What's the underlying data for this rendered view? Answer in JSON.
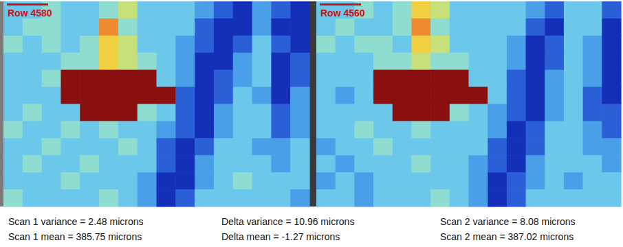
{
  "chart_data": [
    {
      "type": "heatmap",
      "title": "Row 4580",
      "color_range": [
        0,
        8
      ],
      "cells": [
        [
          3,
          3,
          4,
          3,
          3,
          4,
          5,
          3,
          3,
          3,
          2,
          1,
          0,
          2,
          1,
          0
        ],
        [
          3,
          4,
          4,
          3,
          3,
          7,
          4,
          3,
          3,
          3,
          1,
          0,
          0,
          2,
          0,
          0
        ],
        [
          4,
          3,
          4,
          3,
          4,
          6,
          5,
          3,
          3,
          2,
          1,
          0,
          1,
          3,
          1,
          0
        ],
        [
          3,
          3,
          3,
          4,
          4,
          6,
          5,
          4,
          3,
          2,
          0,
          0,
          2,
          3,
          0,
          1
        ],
        [
          3,
          3,
          4,
          8,
          8,
          8,
          8,
          8,
          3,
          2,
          0,
          1,
          2,
          3,
          0,
          1
        ],
        [
          3,
          3,
          3,
          8,
          8,
          8,
          8,
          8,
          8,
          1,
          0,
          1,
          3,
          2,
          0,
          2
        ],
        [
          3,
          4,
          3,
          3,
          8,
          8,
          8,
          4,
          3,
          1,
          0,
          2,
          3,
          3,
          1,
          2
        ],
        [
          4,
          3,
          3,
          4,
          3,
          4,
          3,
          3,
          2,
          1,
          0,
          2,
          3,
          3,
          1,
          2
        ],
        [
          3,
          3,
          4,
          3,
          3,
          3,
          4,
          3,
          1,
          0,
          1,
          3,
          3,
          2,
          2,
          3
        ],
        [
          3,
          4,
          3,
          3,
          4,
          3,
          3,
          3,
          1,
          0,
          2,
          3,
          3,
          3,
          2,
          3
        ],
        [
          3,
          3,
          3,
          4,
          3,
          3,
          3,
          2,
          0,
          0,
          2,
          3,
          4,
          3,
          3,
          3
        ],
        [
          4,
          3,
          3,
          3,
          3,
          4,
          3,
          2,
          0,
          1,
          3,
          3,
          3,
          3,
          3,
          2
        ]
      ]
    },
    {
      "type": "heatmap",
      "title": "Row 4560",
      "color_range": [
        0,
        8
      ],
      "cells": [
        [
          3,
          3,
          4,
          3,
          4,
          6,
          5,
          3,
          3,
          3,
          3,
          2,
          1,
          3,
          3,
          1
        ],
        [
          3,
          4,
          3,
          3,
          4,
          7,
          4,
          3,
          3,
          3,
          3,
          1,
          0,
          3,
          3,
          0
        ],
        [
          4,
          3,
          4,
          4,
          3,
          6,
          5,
          3,
          3,
          3,
          2,
          0,
          1,
          3,
          2,
          0
        ],
        [
          3,
          3,
          3,
          4,
          4,
          5,
          4,
          4,
          3,
          3,
          2,
          0,
          1,
          3,
          2,
          0
        ],
        [
          3,
          3,
          3,
          8,
          8,
          8,
          8,
          8,
          3,
          3,
          1,
          0,
          2,
          3,
          2,
          0
        ],
        [
          3,
          2,
          3,
          8,
          8,
          8,
          8,
          8,
          8,
          3,
          1,
          0,
          2,
          3,
          1,
          0
        ],
        [
          3,
          3,
          3,
          3,
          8,
          8,
          8,
          4,
          3,
          2,
          1,
          0,
          2,
          3,
          1,
          1
        ],
        [
          3,
          3,
          4,
          3,
          3,
          4,
          3,
          3,
          3,
          2,
          0,
          1,
          3,
          3,
          2,
          1
        ],
        [
          2,
          3,
          3,
          4,
          3,
          3,
          3,
          3,
          3,
          1,
          0,
          1,
          3,
          3,
          2,
          2
        ],
        [
          3,
          2,
          3,
          3,
          3,
          4,
          3,
          3,
          2,
          1,
          0,
          2,
          3,
          3,
          3,
          2
        ],
        [
          2,
          3,
          2,
          3,
          3,
          3,
          3,
          3,
          2,
          0,
          1,
          2,
          3,
          2,
          3,
          3
        ],
        [
          3,
          3,
          2,
          3,
          3,
          3,
          4,
          3,
          2,
          0,
          1,
          3,
          3,
          3,
          3,
          3
        ]
      ]
    }
  ],
  "footer": [
    [
      "Scan 1 variance = 2.48 microns",
      "Scan 1 mean = 385.75 microns"
    ],
    [
      "Delta variance = 10.96 microns",
      "Delta mean = -1.27 microns"
    ],
    [
      "Scan 2 variance = 8.08 microns",
      "Scan 2 mean = 387.02 microns"
    ]
  ]
}
